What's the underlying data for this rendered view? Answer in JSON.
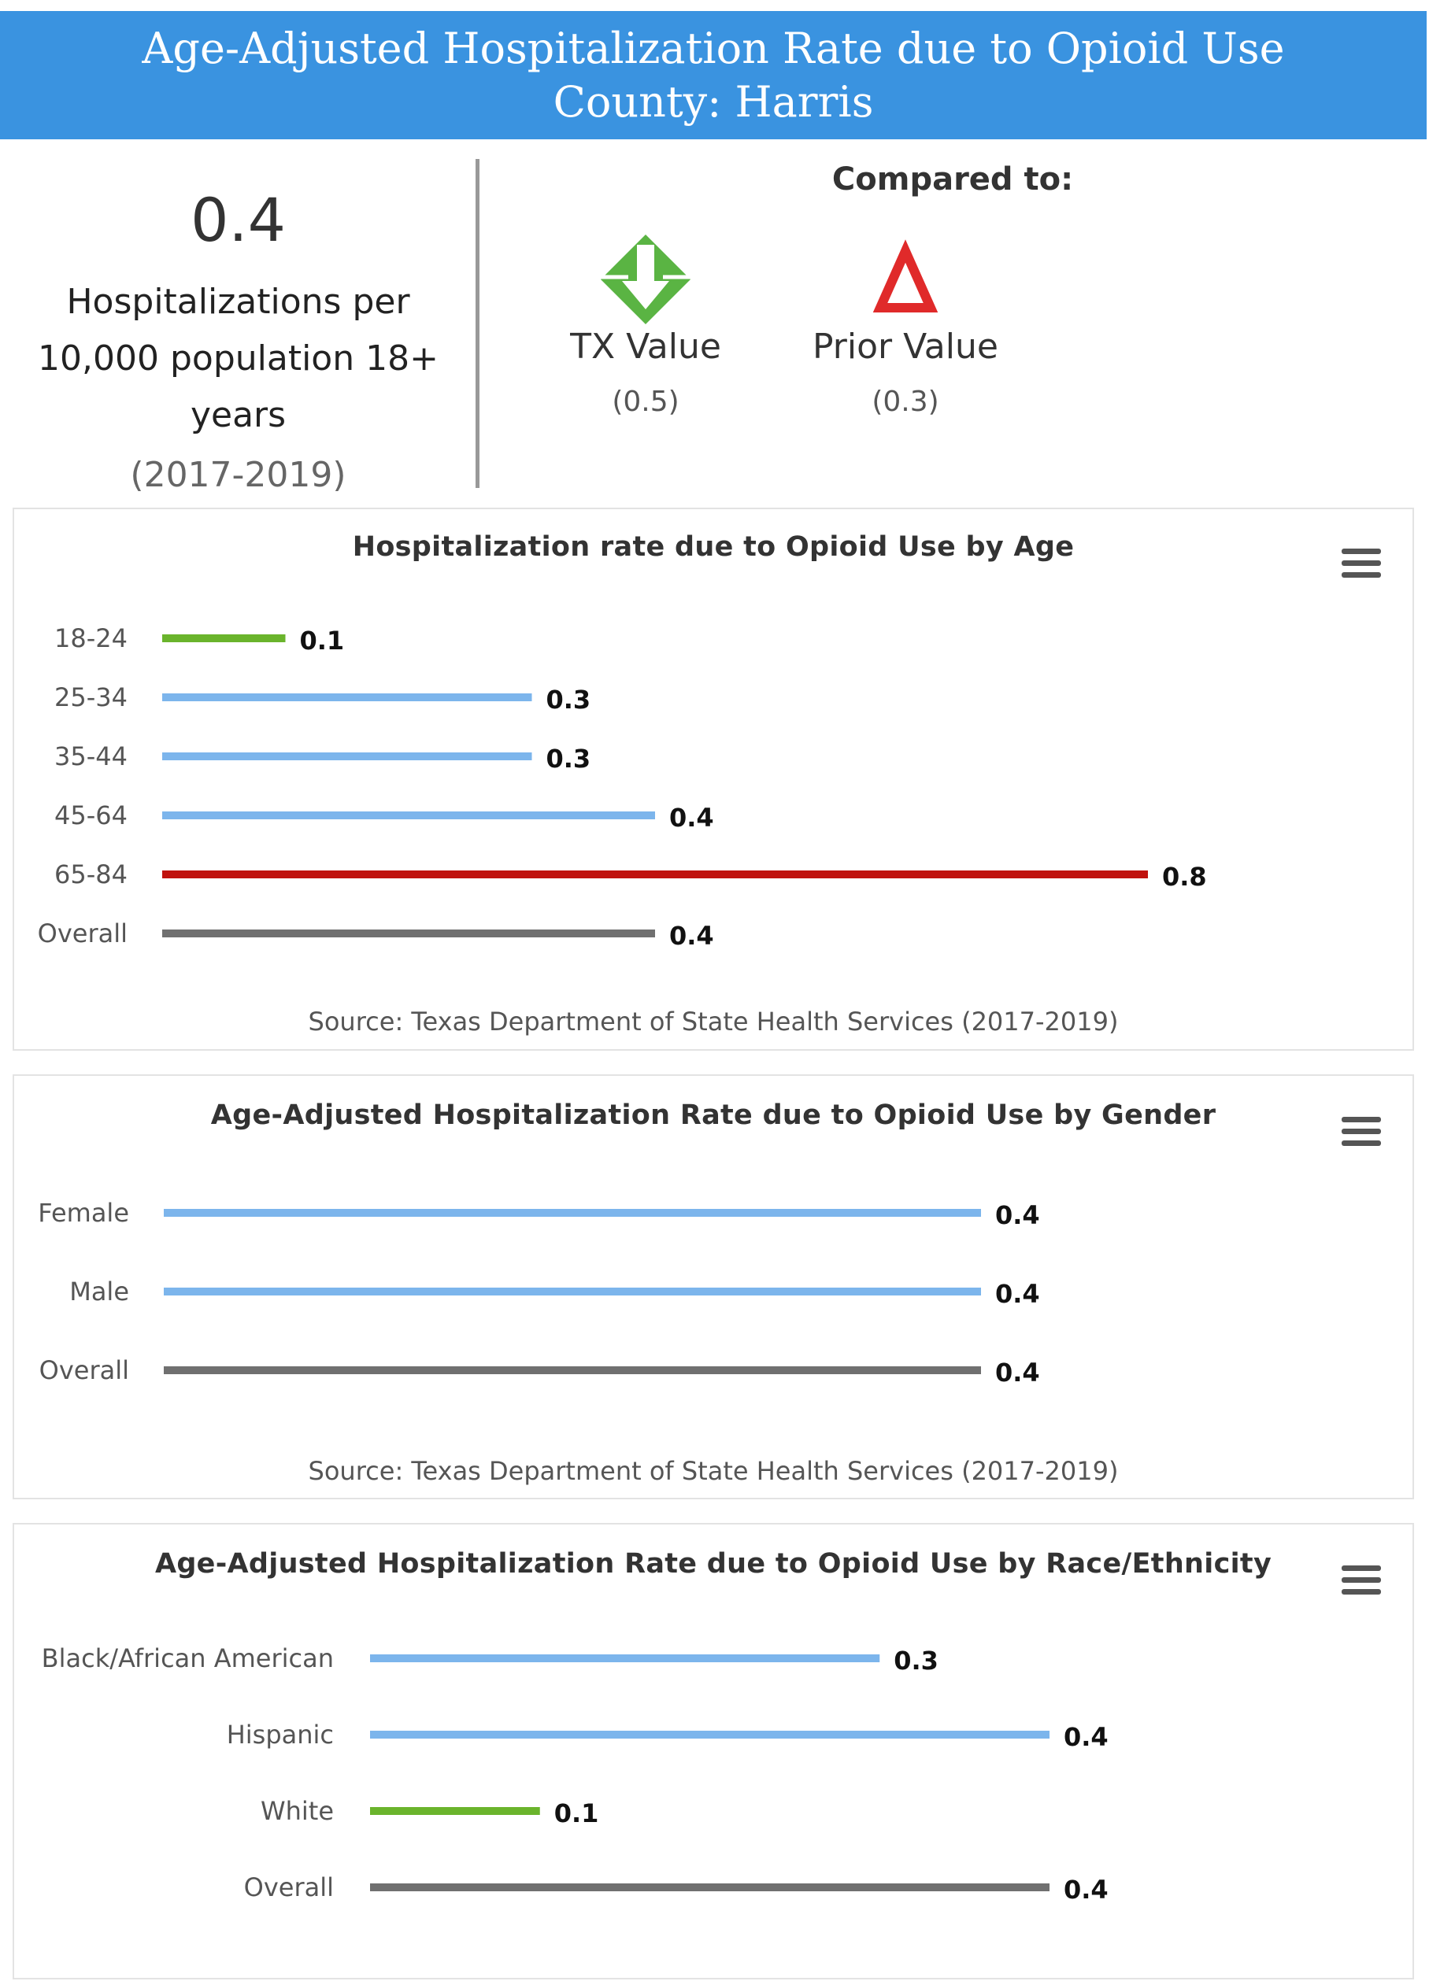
{
  "header": {
    "title": "Age-Adjusted Hospitalization Rate due to Opioid Use",
    "subtitle": "County: Harris"
  },
  "summary": {
    "value": "0.4",
    "description": "Hospitalizations per 10,000 population 18+ years",
    "period": "(2017-2019)",
    "compared_to": "Compared to:",
    "comparisons": [
      {
        "label": "TX Value",
        "value": "(0.5)",
        "icon": "green-diamond-down-arrow-icon",
        "color": "#5ab443"
      },
      {
        "label": "Prior Value",
        "value": "(0.3)",
        "icon": "red-triangle-up-icon",
        "color": "#e02a2a"
      }
    ]
  },
  "colors": {
    "header_bg": "#3a93e0",
    "bar_default": "#7cb5ec",
    "bar_low": "#6ab42c",
    "bar_high": "#c0120e",
    "bar_overall": "#707070"
  },
  "chart_data": [
    {
      "type": "bar",
      "orientation": "horizontal",
      "title": "Hospitalization rate due to Opioid Use by Age",
      "source": "Source: Texas Department of State Health Services (2017-2019)",
      "categories": [
        "18-24",
        "25-34",
        "35-44",
        "45-64",
        "65-84",
        "Overall"
      ],
      "values": [
        0.1,
        0.3,
        0.3,
        0.4,
        0.8,
        0.4
      ],
      "labels": [
        "0.1",
        "0.3",
        "0.3",
        "0.4",
        "0.8",
        "0.4"
      ],
      "colors": [
        "#6ab42c",
        "#7cb5ec",
        "#7cb5ec",
        "#7cb5ec",
        "#c0120e",
        "#707070"
      ],
      "xlim": [
        0,
        0.8
      ]
    },
    {
      "type": "bar",
      "orientation": "horizontal",
      "title": "Age-Adjusted Hospitalization Rate due to Opioid Use by Gender",
      "source": "Source: Texas Department of State Health Services (2017-2019)",
      "categories": [
        "Female",
        "Male",
        "Overall"
      ],
      "values": [
        0.4,
        0.4,
        0.4
      ],
      "labels": [
        "0.4",
        "0.4",
        "0.4"
      ],
      "colors": [
        "#7cb5ec",
        "#7cb5ec",
        "#707070"
      ],
      "xlim": [
        0,
        0.4
      ]
    },
    {
      "type": "bar",
      "orientation": "horizontal",
      "title": "Age-Adjusted Hospitalization Rate due to Opioid Use by Race/Ethnicity",
      "source": "",
      "categories": [
        "Black/African American",
        "Hispanic",
        "White",
        "Overall"
      ],
      "values": [
        0.3,
        0.4,
        0.1,
        0.4
      ],
      "labels": [
        "0.3",
        "0.4",
        "0.1",
        "0.4"
      ],
      "colors": [
        "#7cb5ec",
        "#7cb5ec",
        "#6ab42c",
        "#707070"
      ],
      "xlim": [
        0,
        0.4
      ]
    }
  ]
}
